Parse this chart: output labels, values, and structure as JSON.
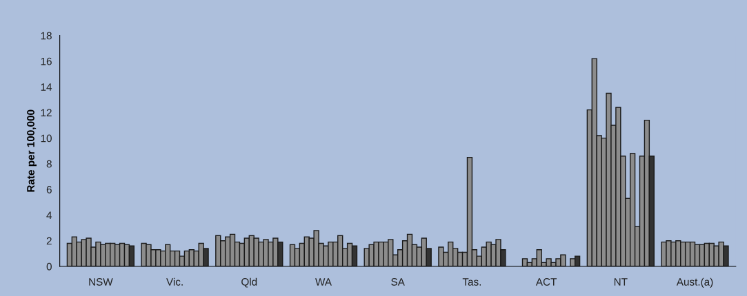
{
  "chart_data": {
    "type": "bar",
    "ylabel": "Rate per 100,000",
    "categories": [
      "NSW",
      "Vic.",
      "Qld",
      "WA",
      "SA",
      "Tas.",
      "ACT",
      "NT",
      "Aust.(a)"
    ],
    "ylim": [
      0,
      18
    ],
    "yticks": [
      0,
      2,
      4,
      6,
      8,
      10,
      12,
      14,
      16,
      18
    ],
    "grid": false,
    "legend": false,
    "series": [
      {
        "color": "#8c8c8c",
        "values": [
          1.8,
          1.8,
          2.4,
          1.7,
          1.4,
          1.5,
          null,
          12.2,
          1.9
        ]
      },
      {
        "color": "#8c8c8c",
        "values": [
          2.3,
          1.7,
          2.0,
          1.4,
          1.7,
          1.1,
          null,
          16.2,
          2.0
        ]
      },
      {
        "color": "#8c8c8c",
        "values": [
          1.9,
          1.3,
          2.3,
          1.8,
          1.9,
          1.9,
          0.6,
          10.2,
          1.9
        ]
      },
      {
        "color": "#8c8c8c",
        "values": [
          2.1,
          1.3,
          2.5,
          2.3,
          1.9,
          1.4,
          0.3,
          10.0,
          2.0
        ]
      },
      {
        "color": "#8c8c8c",
        "values": [
          2.2,
          1.2,
          1.9,
          2.2,
          1.9,
          1.1,
          0.6,
          13.5,
          1.9
        ]
      },
      {
        "color": "#8c8c8c",
        "values": [
          1.5,
          1.7,
          1.8,
          2.8,
          2.1,
          1.1,
          1.3,
          11.0,
          1.9
        ]
      },
      {
        "color": "#8c8c8c",
        "values": [
          1.9,
          1.2,
          2.2,
          1.8,
          0.9,
          8.5,
          0.3,
          12.4,
          1.9
        ]
      },
      {
        "color": "#8c8c8c",
        "values": [
          1.7,
          1.2,
          2.4,
          1.6,
          1.3,
          1.3,
          0.6,
          8.6,
          1.7
        ]
      },
      {
        "color": "#8c8c8c",
        "values": [
          1.8,
          0.8,
          2.2,
          1.9,
          2.0,
          0.8,
          0.3,
          5.3,
          1.7
        ]
      },
      {
        "color": "#8c8c8c",
        "values": [
          1.8,
          1.2,
          1.9,
          1.9,
          2.5,
          1.5,
          0.6,
          8.8,
          1.8
        ]
      },
      {
        "color": "#8c8c8c",
        "values": [
          1.7,
          1.3,
          2.1,
          2.4,
          1.7,
          1.9,
          0.9,
          3.1,
          1.8
        ]
      },
      {
        "color": "#8c8c8c",
        "values": [
          1.8,
          1.2,
          1.9,
          1.4,
          1.5,
          1.7,
          null,
          8.6,
          1.6
        ]
      },
      {
        "color": "#8c8c8c",
        "values": [
          1.7,
          1.8,
          2.2,
          1.8,
          2.2,
          2.1,
          0.6,
          11.4,
          1.9
        ]
      },
      {
        "color": "#333333",
        "values": [
          1.6,
          1.4,
          1.9,
          1.6,
          1.4,
          1.3,
          0.8,
          8.6,
          1.6
        ]
      }
    ]
  }
}
